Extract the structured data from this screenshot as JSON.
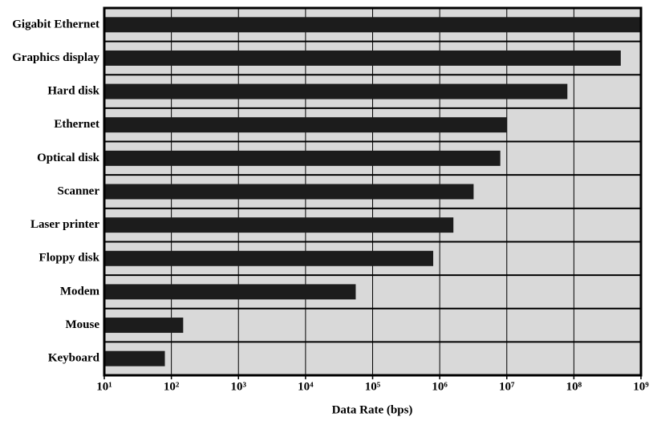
{
  "chart_data": {
    "type": "barh",
    "xlabel": "Data Rate (bps)",
    "categories": [
      "Gigabit Ethernet",
      "Graphics display",
      "Hard disk",
      "Ethernet",
      "Optical disk",
      "Scanner",
      "Laser printer",
      "Floppy disk",
      "Modem",
      "Mouse",
      "Keyboard"
    ],
    "values": [
      1000000000,
      500000000,
      80000000,
      10000000,
      8000000,
      3200000,
      1600000,
      800000,
      56000,
      150,
      80
    ],
    "color": "#1c1c1c",
    "background": "#d9d9d9",
    "xscale": "log",
    "xlim": [
      10,
      1000000000
    ],
    "xticks": [
      {
        "value": 10,
        "label": "10¹"
      },
      {
        "value": 100,
        "label": "10²"
      },
      {
        "value": 1000,
        "label": "10³"
      },
      {
        "value": 10000,
        "label": "10⁴"
      },
      {
        "value": 100000,
        "label": "10⁵"
      },
      {
        "value": 1000000,
        "label": "10⁶"
      },
      {
        "value": 10000000,
        "label": "10⁷"
      },
      {
        "value": 100000000,
        "label": "10⁸"
      },
      {
        "value": 1000000000,
        "label": "10⁹"
      }
    ],
    "grid": true
  }
}
